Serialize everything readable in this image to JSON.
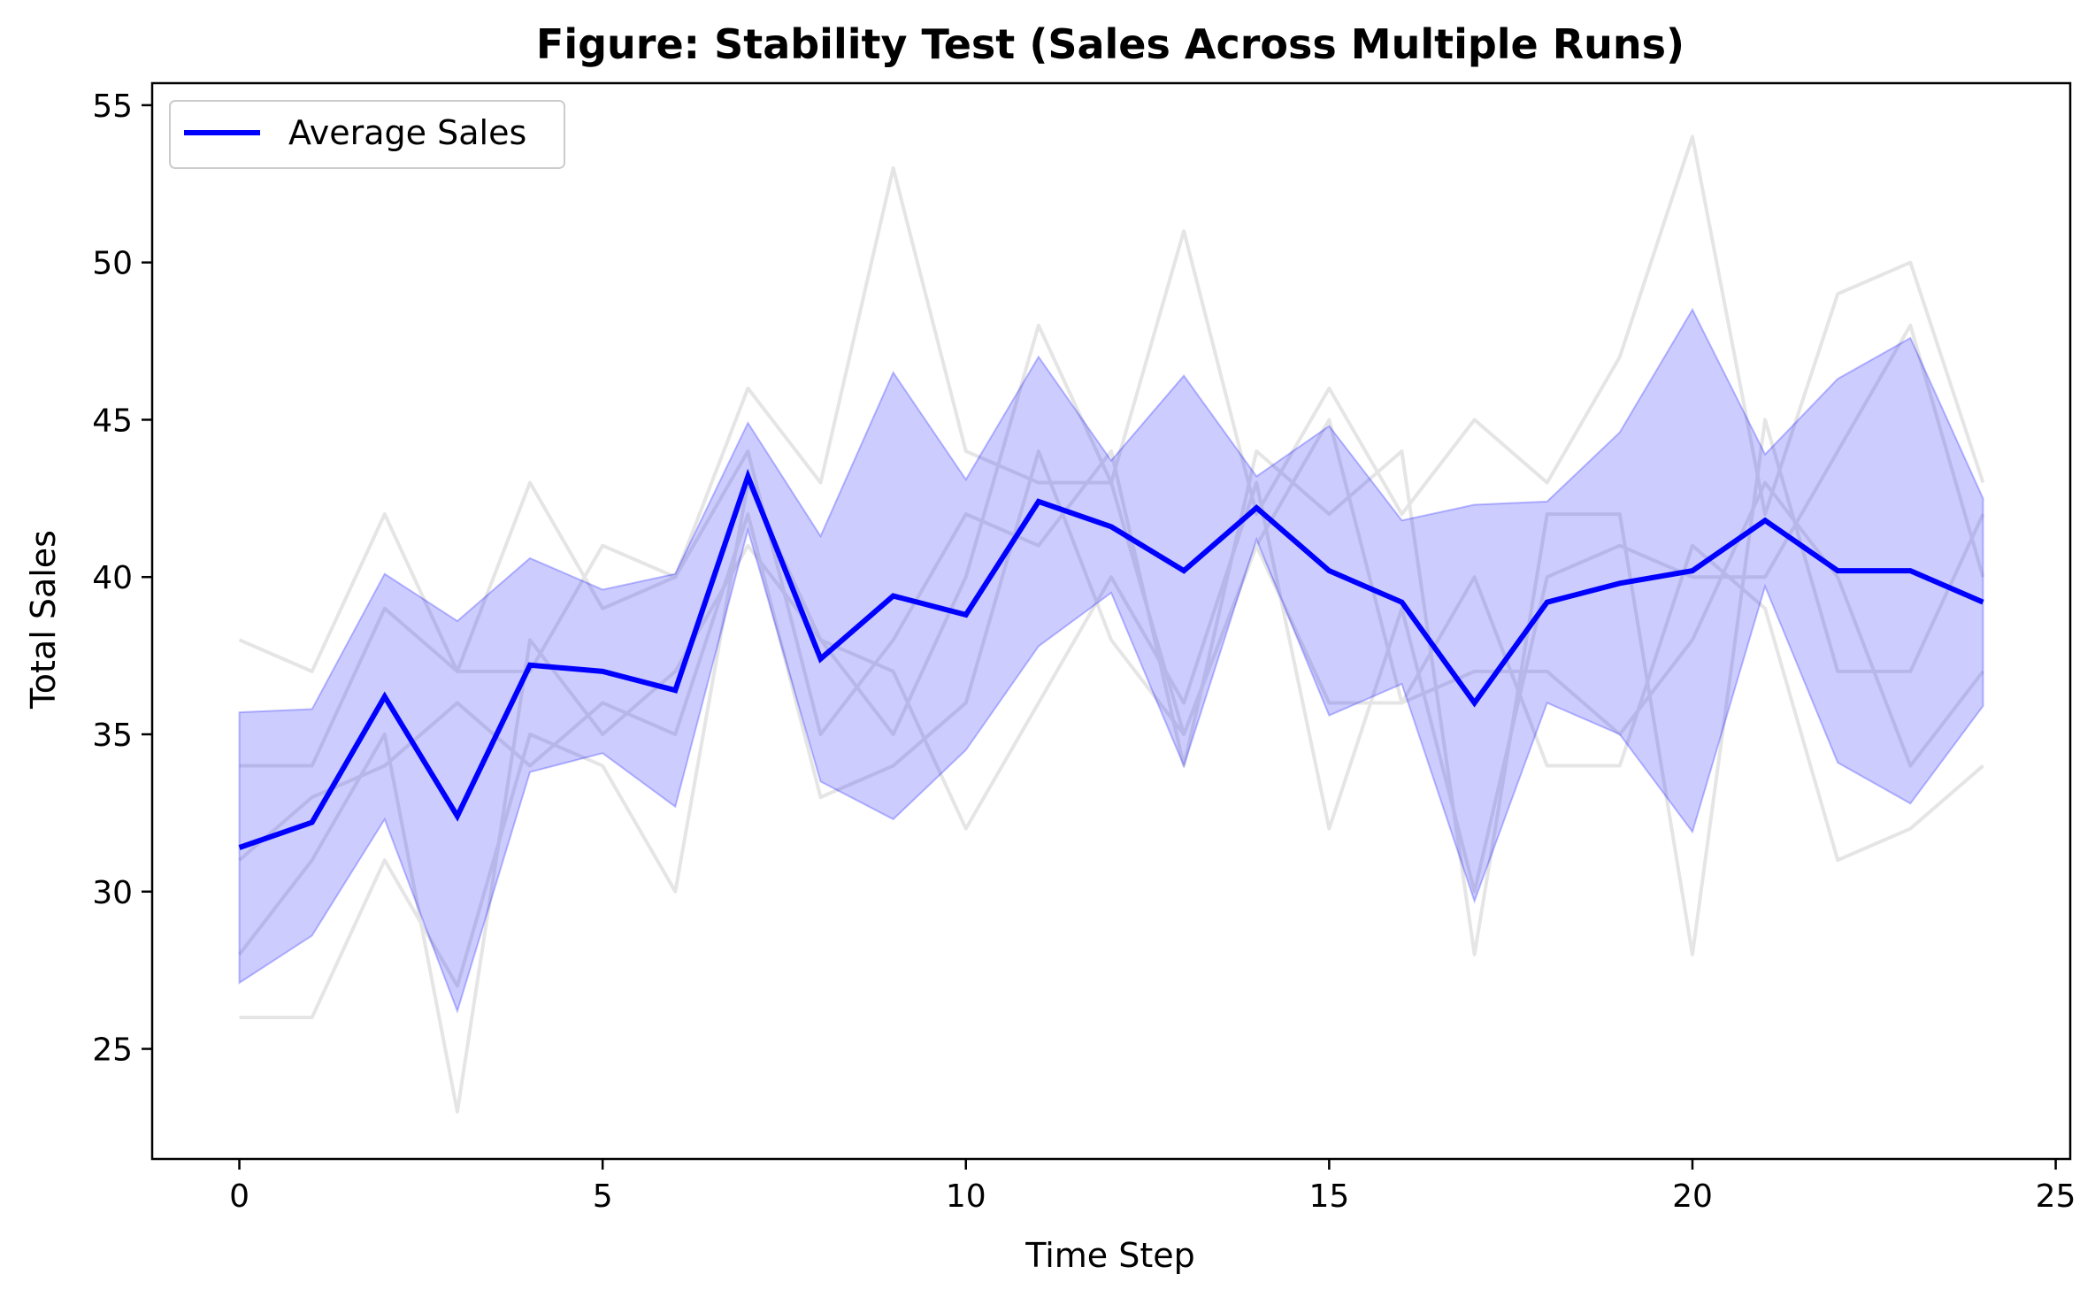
{
  "chart_data": {
    "type": "line",
    "title": "Figure: Stability Test (Sales Across Multiple Runs)",
    "xlabel": "Time Step",
    "ylabel": "Total Sales",
    "xlim": [
      -1.2,
      25.2
    ],
    "ylim": [
      21.5,
      55.7
    ],
    "xticks": [
      0,
      5,
      10,
      15,
      20,
      25
    ],
    "yticks": [
      25,
      30,
      35,
      40,
      45,
      50,
      55
    ],
    "grid": false,
    "legend": {
      "position": "upper-left",
      "entries": [
        "Average Sales"
      ]
    },
    "colors": {
      "average": "#0000ff",
      "band_fill": "#ccccff",
      "band_edge": "#9999ff",
      "runs": "#e5e5e5"
    },
    "x": [
      0,
      1,
      2,
      3,
      4,
      5,
      6,
      7,
      8,
      9,
      10,
      11,
      12,
      13,
      14,
      15,
      16,
      17,
      18,
      19,
      20,
      21,
      22,
      23,
      24
    ],
    "series": [
      {
        "name": "Average Sales",
        "values": [
          31.4,
          32.2,
          36.2,
          32.4,
          37.2,
          37.0,
          36.4,
          43.2,
          37.4,
          39.4,
          38.8,
          42.4,
          41.6,
          40.2,
          42.2,
          40.2,
          39.2,
          36.0,
          39.2,
          39.8,
          40.2,
          41.8,
          40.2,
          40.2,
          39.2
        ]
      }
    ],
    "band": {
      "lower": [
        27.1,
        28.6,
        32.3,
        26.2,
        33.8,
        34.4,
        32.7,
        41.5,
        33.5,
        32.3,
        34.5,
        37.8,
        39.5,
        34.0,
        41.2,
        35.6,
        36.6,
        29.7,
        36.0,
        35.0,
        31.9,
        39.7,
        34.1,
        32.8,
        35.9
      ],
      "upper": [
        35.7,
        35.8,
        40.1,
        38.6,
        40.6,
        39.6,
        40.1,
        44.9,
        41.3,
        46.5,
        43.1,
        47.0,
        43.7,
        46.4,
        43.2,
        44.8,
        41.8,
        42.3,
        42.4,
        44.6,
        48.5,
        43.9,
        46.3,
        47.6,
        42.5
      ]
    },
    "runs": [
      [
        38,
        37,
        42,
        37,
        43,
        39,
        40,
        46,
        43,
        53,
        44,
        43,
        43,
        51,
        42,
        46,
        42,
        45,
        43,
        47,
        54,
        42,
        49,
        50,
        43
      ],
      [
        34,
        34,
        39,
        37,
        37,
        41,
        40,
        44,
        35,
        38,
        42,
        41,
        44,
        34,
        44,
        42,
        44,
        28,
        42,
        42,
        28,
        45,
        37,
        37,
        42
      ],
      [
        31,
        33,
        34,
        36,
        34,
        36,
        35,
        42,
        33,
        34,
        36,
        44,
        38,
        35,
        41,
        45,
        36,
        40,
        34,
        34,
        41,
        39,
        31,
        32,
        34
      ],
      [
        26,
        26,
        31,
        27,
        35,
        34,
        30,
        43,
        38,
        37,
        32,
        36,
        40,
        36,
        43,
        32,
        39,
        30,
        40,
        41,
        40,
        40,
        44,
        48,
        40
      ],
      [
        28,
        31,
        35,
        23,
        38,
        35,
        37,
        41,
        38,
        35,
        40,
        48,
        43,
        35,
        41,
        36,
        36,
        37,
        37,
        35,
        38,
        43,
        40,
        34,
        37
      ]
    ]
  }
}
